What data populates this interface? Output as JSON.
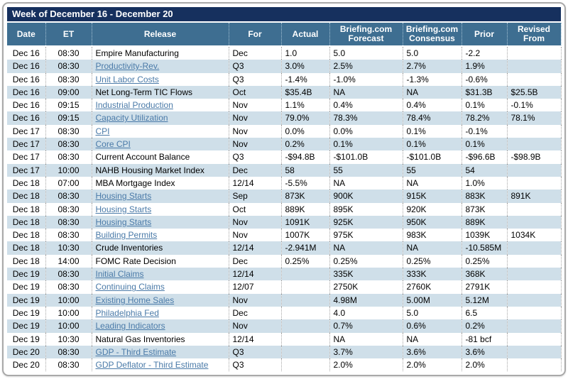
{
  "title": "Week of December 16 - December 20",
  "colors": {
    "title_bar_bg": "#16305e",
    "header_bg": "#3e6e91",
    "header_text": "#ffffff",
    "row_alt_bg": "#cfdfe9",
    "row_bg": "#ffffff",
    "link": "#4a7aa8",
    "body_text": "#000000",
    "panel_border": "#a9a9a9"
  },
  "columns": [
    {
      "key": "date",
      "label": "Date"
    },
    {
      "key": "et",
      "label": "ET"
    },
    {
      "key": "release",
      "label": "Release"
    },
    {
      "key": "for",
      "label": "For"
    },
    {
      "key": "actual",
      "label": "Actual"
    },
    {
      "key": "briefing-forecast",
      "label": "Briefing.com Forecast"
    },
    {
      "key": "briefing-consensus",
      "label": "Briefing.com Consensus"
    },
    {
      "key": "prior",
      "label": "Prior"
    },
    {
      "key": "revised-from",
      "label": "Revised From"
    }
  ],
  "rows": [
    {
      "date": "Dec 16",
      "et": "08:30",
      "release": "Empire Manufacturing",
      "link": false,
      "for": "Dec",
      "actual": "1.0",
      "forecast": "5.0",
      "consensus": "5.0",
      "prior": "-2.2",
      "revised": ""
    },
    {
      "date": "Dec 16",
      "et": "08:30",
      "release": "Productivity-Rev.",
      "link": true,
      "for": "Q3",
      "actual": "3.0%",
      "forecast": "2.5%",
      "consensus": "2.7%",
      "prior": "1.9%",
      "revised": ""
    },
    {
      "date": "Dec 16",
      "et": "08:30",
      "release": "Unit Labor Costs",
      "link": true,
      "for": "Q3",
      "actual": "-1.4%",
      "forecast": "-1.0%",
      "consensus": "-1.3%",
      "prior": "-0.6%",
      "revised": ""
    },
    {
      "date": "Dec 16",
      "et": "09:00",
      "release": "Net Long-Term TIC Flows",
      "link": false,
      "for": "Oct",
      "actual": "$35.4B",
      "forecast": "NA",
      "consensus": "NA",
      "prior": "$31.3B",
      "revised": "$25.5B"
    },
    {
      "date": "Dec 16",
      "et": "09:15",
      "release": "Industrial Production",
      "link": true,
      "for": "Nov",
      "actual": "1.1%",
      "forecast": "0.4%",
      "consensus": "0.4%",
      "prior": "0.1%",
      "revised": "-0.1%"
    },
    {
      "date": "Dec 16",
      "et": "09:15",
      "release": "Capacity Utilization",
      "link": true,
      "for": "Nov",
      "actual": "79.0%",
      "forecast": "78.3%",
      "consensus": "78.4%",
      "prior": "78.2%",
      "revised": "78.1%"
    },
    {
      "date": "Dec 17",
      "et": "08:30",
      "release": "CPI",
      "link": true,
      "for": "Nov",
      "actual": "0.0%",
      "forecast": "0.0%",
      "consensus": "0.1%",
      "prior": "-0.1%",
      "revised": ""
    },
    {
      "date": "Dec 17",
      "et": "08:30",
      "release": "Core CPI",
      "link": true,
      "for": "Nov",
      "actual": "0.2%",
      "forecast": "0.1%",
      "consensus": "0.1%",
      "prior": "0.1%",
      "revised": ""
    },
    {
      "date": "Dec 17",
      "et": "08:30",
      "release": "Current Account Balance",
      "link": false,
      "for": "Q3",
      "actual": "-$94.8B",
      "forecast": "-$101.0B",
      "consensus": "-$101.0B",
      "prior": "-$96.6B",
      "revised": "-$98.9B"
    },
    {
      "date": "Dec 17",
      "et": "10:00",
      "release": "NAHB Housing Market Index",
      "link": false,
      "for": "Dec",
      "actual": "58",
      "forecast": "55",
      "consensus": "55",
      "prior": "54",
      "revised": ""
    },
    {
      "date": "Dec 18",
      "et": "07:00",
      "release": "MBA Mortgage Index",
      "link": false,
      "for": "12/14",
      "actual": "-5.5%",
      "forecast": "NA",
      "consensus": "NA",
      "prior": "1.0%",
      "revised": ""
    },
    {
      "date": "Dec 18",
      "et": "08:30",
      "release": "Housing Starts",
      "link": true,
      "for": "Sep",
      "actual": "873K",
      "forecast": "900K",
      "consensus": "915K",
      "prior": "883K",
      "revised": "891K"
    },
    {
      "date": "Dec 18",
      "et": "08:30",
      "release": "Housing Starts",
      "link": true,
      "for": "Oct",
      "actual": "889K",
      "forecast": "895K",
      "consensus": "920K",
      "prior": "873K",
      "revised": ""
    },
    {
      "date": "Dec 18",
      "et": "08:30",
      "release": "Housing Starts",
      "link": true,
      "for": "Nov",
      "actual": "1091K",
      "forecast": "925K",
      "consensus": "950K",
      "prior": "889K",
      "revised": ""
    },
    {
      "date": "Dec 18",
      "et": "08:30",
      "release": "Building Permits",
      "link": true,
      "for": "Nov",
      "actual": "1007K",
      "forecast": "975K",
      "consensus": "983K",
      "prior": "1039K",
      "revised": "1034K"
    },
    {
      "date": "Dec 18",
      "et": "10:30",
      "release": "Crude Inventories",
      "link": false,
      "for": "12/14",
      "actual": "-2.941M",
      "forecast": "NA",
      "consensus": "NA",
      "prior": "-10.585M",
      "revised": ""
    },
    {
      "date": "Dec 18",
      "et": "14:00",
      "release": "FOMC Rate Decision",
      "link": false,
      "for": "Dec",
      "actual": "0.25%",
      "forecast": "0.25%",
      "consensus": "0.25%",
      "prior": "0.25%",
      "revised": ""
    },
    {
      "date": "Dec 19",
      "et": "08:30",
      "release": "Initial Claims",
      "link": true,
      "for": "12/14",
      "actual": "",
      "forecast": "335K",
      "consensus": "333K",
      "prior": "368K",
      "revised": ""
    },
    {
      "date": "Dec 19",
      "et": "08:30",
      "release": "Continuing Claims",
      "link": true,
      "for": "12/07",
      "actual": "",
      "forecast": "2750K",
      "consensus": "2760K",
      "prior": "2791K",
      "revised": ""
    },
    {
      "date": "Dec 19",
      "et": "10:00",
      "release": "Existing Home Sales",
      "link": true,
      "for": "Nov",
      "actual": "",
      "forecast": "4.98M",
      "consensus": "5.00M",
      "prior": "5.12M",
      "revised": ""
    },
    {
      "date": "Dec 19",
      "et": "10:00",
      "release": "Philadelphia Fed",
      "link": true,
      "for": "Dec",
      "actual": "",
      "forecast": "4.0",
      "consensus": "5.0",
      "prior": "6.5",
      "revised": ""
    },
    {
      "date": "Dec 19",
      "et": "10:00",
      "release": "Leading Indicators",
      "link": true,
      "for": "Nov",
      "actual": "",
      "forecast": "0.7%",
      "consensus": "0.6%",
      "prior": "0.2%",
      "revised": ""
    },
    {
      "date": "Dec 19",
      "et": "10:30",
      "release": "Natural Gas Inventories",
      "link": false,
      "for": "12/14",
      "actual": "",
      "forecast": "NA",
      "consensus": "NA",
      "prior": "-81 bcf",
      "revised": ""
    },
    {
      "date": "Dec 20",
      "et": "08:30",
      "release": "GDP - Third Estimate",
      "link": true,
      "for": "Q3",
      "actual": "",
      "forecast": "3.7%",
      "consensus": "3.6%",
      "prior": "3.6%",
      "revised": ""
    },
    {
      "date": "Dec 20",
      "et": "08:30",
      "release": "GDP Deflator - Third Estimate",
      "link": true,
      "for": "Q3",
      "actual": "",
      "forecast": "2.0%",
      "consensus": "2.0%",
      "prior": "2.0%",
      "revised": ""
    }
  ]
}
